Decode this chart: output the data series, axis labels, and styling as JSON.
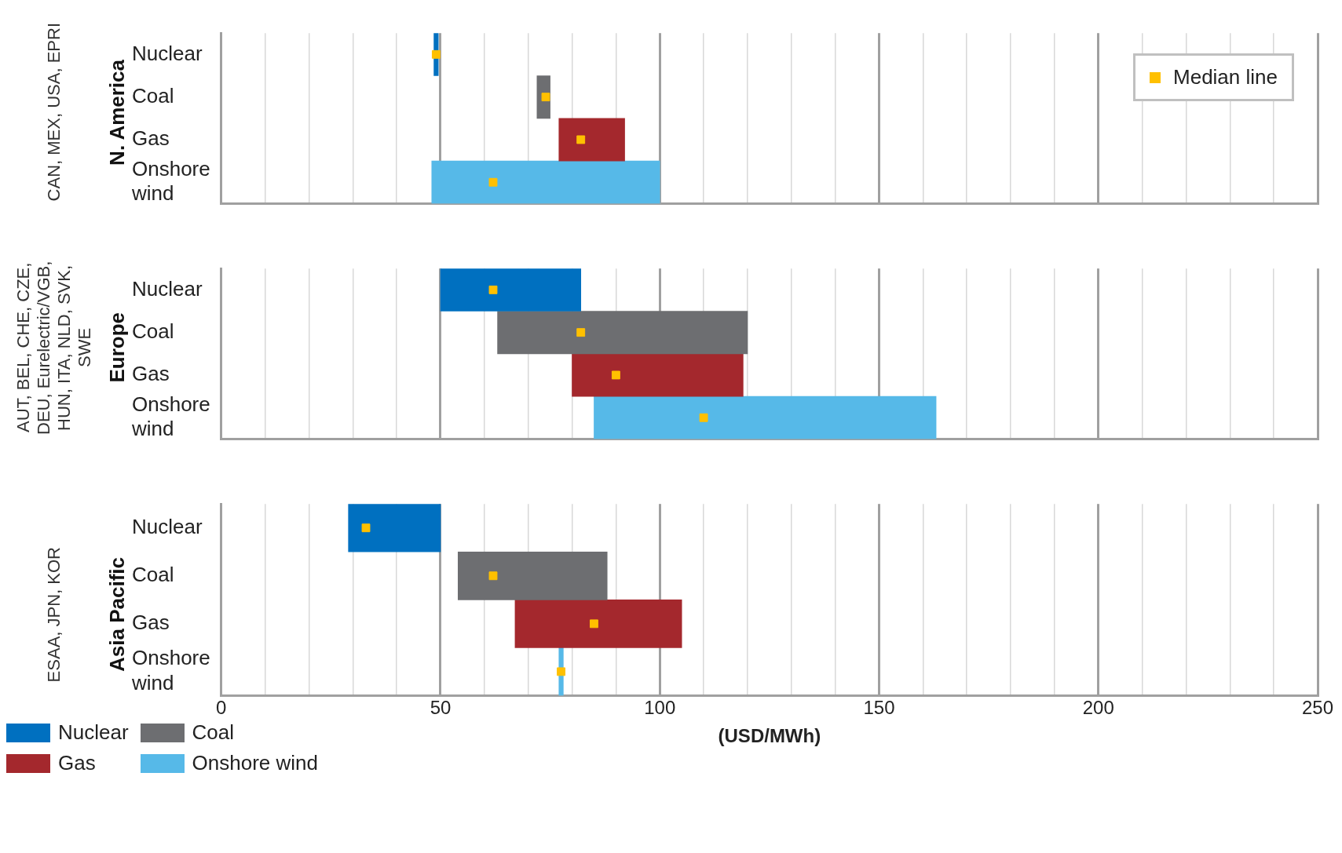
{
  "chart_data": [
    {
      "type": "bar",
      "orientation": "horizontal",
      "ylabel": "N. America",
      "annotations": [
        "CAN, MEX, USA, EPRI"
      ],
      "categories": [
        "Nuclear",
        "Coal",
        "Gas",
        "Onshore wind"
      ],
      "xlim": [
        0,
        250
      ],
      "xticks": [
        0,
        {
          "value": 10,
          "label": null
        },
        {
          "value": 20,
          "label": null
        },
        {
          "value": 30,
          "label": null
        },
        {
          "value": 40,
          "label": null
        },
        50,
        {
          "value": 60,
          "label": null
        },
        {
          "value": 70,
          "label": null
        },
        {
          "value": 80,
          "label": null
        },
        {
          "value": 90,
          "label": null
        },
        100,
        {
          "value": 110,
          "label": null
        },
        {
          "value": 120,
          "label": null
        },
        {
          "value": 130,
          "label": null
        },
        {
          "value": 140,
          "label": null
        },
        150,
        {
          "value": 160,
          "label": null
        },
        {
          "value": 170,
          "label": null
        },
        {
          "value": 180,
          "label": null
        },
        {
          "value": 190,
          "label": null
        },
        200,
        {
          "value": 210,
          "label": null
        },
        {
          "value": 220,
          "label": null
        },
        {
          "value": 230,
          "label": null
        },
        {
          "value": 240,
          "label": null
        },
        250
      ],
      "grid": "x",
      "tick_labels": "y",
      "legend": "bottom",
      "series": [
        {
          "name": "Nuclear",
          "color": "#0070c0",
          "values": [
            1,
            null,
            null,
            null
          ],
          "base": [
            48.5,
            null,
            null,
            null
          ]
        },
        {
          "name": "Coal",
          "color": "#6d6e71",
          "values": [
            null,
            3,
            null,
            null
          ],
          "base": [
            null,
            72,
            null,
            null
          ]
        },
        {
          "name": "Gas",
          "color": "#a4282d",
          "values": [
            null,
            null,
            15,
            null
          ],
          "base": [
            null,
            null,
            77,
            null
          ]
        },
        {
          "name": "Onshore wind",
          "color": "#56b9e8",
          "values": [
            null,
            null,
            null,
            52
          ],
          "base": [
            null,
            null,
            null,
            48
          ]
        },
        {
          "name": "Median line",
          "type": "scatter",
          "marker": "square",
          "color": "#ffc000",
          "values": [
            49,
            74,
            82,
            62
          ]
        }
      ]
    },
    {
      "type": "bar",
      "orientation": "horizontal",
      "ylabel": "Europe",
      "annotations": [
        "AUT, BEL, CHE, CZE, DEU, Eurelectric/VGB, HUN, ITA, NLD, SVK, SWE"
      ],
      "categories": [
        "Nuclear",
        "Coal",
        "Gas",
        "Onshore wind"
      ],
      "xlim": [
        0,
        250
      ],
      "xticks": [
        0,
        {
          "value": 10,
          "label": null
        },
        {
          "value": 20,
          "label": null
        },
        {
          "value": 30,
          "label": null
        },
        {
          "value": 40,
          "label": null
        },
        50,
        {
          "value": 60,
          "label": null
        },
        {
          "value": 70,
          "label": null
        },
        {
          "value": 80,
          "label": null
        },
        {
          "value": 90,
          "label": null
        },
        100,
        {
          "value": 110,
          "label": null
        },
        {
          "value": 120,
          "label": null
        },
        {
          "value": 130,
          "label": null
        },
        {
          "value": 140,
          "label": null
        },
        150,
        {
          "value": 160,
          "label": null
        },
        {
          "value": 170,
          "label": null
        },
        {
          "value": 180,
          "label": null
        },
        {
          "value": 190,
          "label": null
        },
        200,
        {
          "value": 210,
          "label": null
        },
        {
          "value": 220,
          "label": null
        },
        {
          "value": 230,
          "label": null
        },
        {
          "value": 240,
          "label": null
        },
        250
      ],
      "grid": "x",
      "tick_labels": "y",
      "series": [
        {
          "color": "#0070c0",
          "values": [
            32,
            null,
            null,
            null
          ],
          "base": [
            50,
            null,
            null,
            null
          ]
        },
        {
          "color": "#6d6e71",
          "values": [
            null,
            57,
            null,
            null
          ],
          "base": [
            null,
            63,
            null,
            null
          ]
        },
        {
          "color": "#a4282d",
          "values": [
            null,
            null,
            39,
            null
          ],
          "base": [
            null,
            null,
            80,
            null
          ]
        },
        {
          "color": "#56b9e8",
          "values": [
            null,
            null,
            null,
            78
          ],
          "base": [
            null,
            null,
            null,
            85
          ]
        },
        {
          "type": "scatter",
          "marker": "square",
          "color": "#ffc000",
          "values": [
            62,
            82,
            90,
            110
          ]
        }
      ]
    },
    {
      "type": "bar",
      "orientation": "horizontal",
      "ylabel": "Asia Pacific",
      "xlabel": "(USD/MWh)",
      "annotations": [
        "ESAA, JPN, KOR"
      ],
      "categories": [
        "Nuclear",
        "Coal",
        "Gas",
        "Onshore wind"
      ],
      "xlim": [
        0,
        250
      ],
      "xticks": [
        0,
        {
          "value": 10,
          "label": null
        },
        {
          "value": 20,
          "label": null
        },
        {
          "value": 30,
          "label": null
        },
        {
          "value": 40,
          "label": null
        },
        50,
        {
          "value": 60,
          "label": null
        },
        {
          "value": 70,
          "label": null
        },
        {
          "value": 80,
          "label": null
        },
        {
          "value": 90,
          "label": null
        },
        100,
        {
          "value": 110,
          "label": null
        },
        {
          "value": 120,
          "label": null
        },
        {
          "value": 130,
          "label": null
        },
        {
          "value": 140,
          "label": null
        },
        150,
        {
          "value": 160,
          "label": null
        },
        {
          "value": 170,
          "label": null
        },
        {
          "value": 180,
          "label": null
        },
        {
          "value": 190,
          "label": null
        },
        200,
        {
          "value": 210,
          "label": null
        },
        {
          "value": 220,
          "label": null
        },
        {
          "value": 230,
          "label": null
        },
        {
          "value": 240,
          "label": null
        },
        250
      ],
      "grid": "x",
      "series": [
        {
          "color": "#0070c0",
          "values": [
            21,
            null,
            null,
            null
          ],
          "base": [
            29,
            null,
            null,
            null
          ]
        },
        {
          "color": "#6d6e71",
          "values": [
            null,
            34,
            null,
            null
          ],
          "base": [
            null,
            54,
            null,
            null
          ]
        },
        {
          "color": "#a4282d",
          "values": [
            null,
            null,
            38,
            null
          ],
          "base": [
            null,
            null,
            67,
            null
          ]
        },
        {
          "color": "#56b9e8",
          "values": [
            null,
            null,
            null,
            1
          ],
          "base": [
            null,
            null,
            null,
            77
          ]
        },
        {
          "type": "scatter",
          "marker": "square",
          "color": "#ffc000",
          "values": [
            33,
            62,
            85,
            77.5
          ]
        }
      ]
    }
  ]
}
